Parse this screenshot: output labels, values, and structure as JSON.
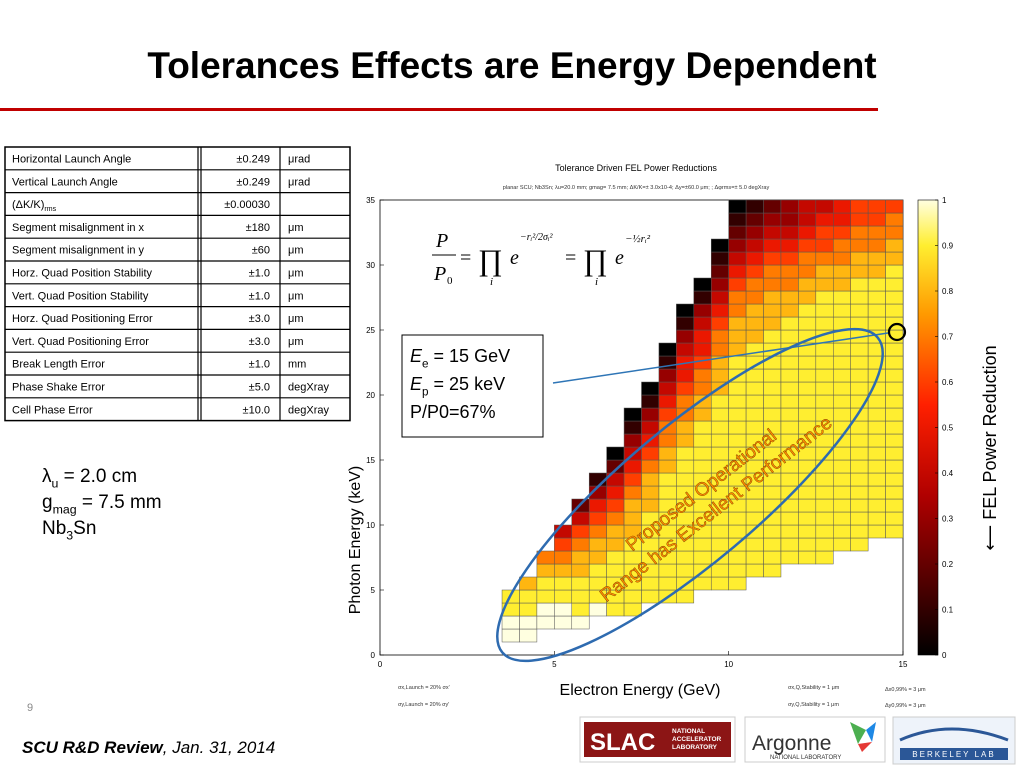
{
  "title": "Tolerances Effects are Energy Dependent",
  "table": {
    "rows": [
      [
        "Horizontal Launch Angle",
        "±0.249",
        "μrad"
      ],
      [
        "Vertical Launch Angle",
        "±0.249",
        "μrad"
      ],
      [
        {
          "text": "(ΔK/K)",
          "sub": "rms"
        },
        "±0.00030",
        ""
      ],
      [
        "Segment misalignment in x",
        "±180",
        "μm"
      ],
      [
        "Segment misalignment in y",
        "±60",
        "μm"
      ],
      [
        "Horz. Quad Position Stability",
        "±1.0",
        "μm"
      ],
      [
        "Vert. Quad Position Stability",
        "±1.0",
        "μm"
      ],
      [
        "Horz. Quad Positioning Error",
        "±3.0",
        "μm"
      ],
      [
        "Vert. Quad Positioning Error",
        "±3.0",
        "μm"
      ],
      [
        "Break Length Error",
        "±1.0",
        "mm"
      ],
      [
        "Phase Shake Error",
        "±5.0",
        "degXray"
      ],
      [
        "Cell Phase Error",
        "±10.0",
        "degXray"
      ]
    ]
  },
  "params": [
    {
      "main": "λ",
      "sub": "u",
      "rest": "   = 2.0 cm"
    },
    {
      "main": "g",
      "sub": "mag",
      "rest": " = 7.5 mm"
    },
    {
      "main": "Nb",
      "sub": "3",
      "rest": "Sn"
    }
  ],
  "chart_data": {
    "type": "heatmap",
    "title": "Tolerance Driven FEL Power Reductions",
    "subtitle": "planar SCU; Nb3Sn; λu=20.0 mm; gmag= 7.5 mm; ΔK/K=± 3.0x10-4; Δy=±60.0 μm; ; Δφrms=± 5.0 degXray",
    "xlabel": "Electron Energy (GeV)",
    "ylabel": "Photon Energy (keV)",
    "xlim": [
      0,
      15
    ],
    "ylim": [
      0,
      35
    ],
    "xticks": [
      0,
      5,
      10,
      15
    ],
    "yticks": [
      0,
      5,
      10,
      15,
      20,
      25,
      30,
      35
    ],
    "x_step": 0.5,
    "y_step": 1,
    "clim": [
      0,
      1
    ],
    "cticks": [
      0,
      0.1,
      0.2,
      0.3,
      0.4,
      0.5,
      0.6,
      0.7,
      0.8,
      0.9,
      1
    ],
    "colorscale": {
      "stops": [
        0,
        0.35,
        0.55,
        0.75,
        0.9,
        1
      ],
      "colors": [
        "#000000",
        "#b00000",
        "#ff2000",
        "#ff9a00",
        "#ffee30",
        "#ffffe0"
      ]
    },
    "columns": [
      {
        "x": 3.5,
        "y0": 1,
        "values": [
          1,
          1,
          0.9,
          0.9
        ]
      },
      {
        "x": 4,
        "y0": 1,
        "values": [
          1,
          1,
          0.9,
          0.9,
          0.8
        ]
      },
      {
        "x": 4.5,
        "y0": 2,
        "values": [
          1,
          1,
          0.9,
          0.9,
          0.8,
          0.7
        ]
      },
      {
        "x": 5,
        "y0": 2,
        "values": [
          1,
          1,
          0.9,
          0.9,
          0.8,
          0.7,
          0.6,
          0.4
        ]
      },
      {
        "x": 5.5,
        "y0": 2,
        "values": [
          1,
          0.9,
          0.9,
          0.9,
          0.8,
          0.8,
          0.7,
          0.6,
          0.4,
          0.2
        ]
      },
      {
        "x": 6,
        "y0": 3,
        "values": [
          1,
          0.9,
          0.9,
          0.9,
          0.8,
          0.8,
          0.7,
          0.6,
          0.5,
          0.3,
          0.1
        ]
      },
      {
        "x": 6.5,
        "y0": 3,
        "values": [
          0.9,
          0.9,
          0.9,
          0.9,
          0.9,
          0.8,
          0.8,
          0.7,
          0.6,
          0.5,
          0.4,
          0.2,
          0
        ]
      },
      {
        "x": 7,
        "y0": 3,
        "values": [
          0.9,
          0.9,
          0.9,
          0.9,
          0.9,
          0.9,
          0.8,
          0.8,
          0.8,
          0.7,
          0.6,
          0.5,
          0.4,
          0.3,
          0.1,
          0
        ]
      },
      {
        "x": 7.5,
        "y0": 4,
        "values": [
          0.9,
          0.9,
          0.9,
          0.9,
          0.9,
          0.9,
          0.9,
          0.8,
          0.8,
          0.8,
          0.7,
          0.6,
          0.5,
          0.4,
          0.3,
          0.1,
          0
        ]
      },
      {
        "x": 8,
        "y0": 4,
        "values": [
          0.9,
          0.9,
          0.9,
          0.9,
          0.9,
          0.9,
          0.9,
          0.9,
          0.9,
          0.9,
          0.8,
          0.8,
          0.7,
          0.7,
          0.6,
          0.5,
          0.4,
          0.3,
          0.1,
          0
        ]
      },
      {
        "x": 8.5,
        "y0": 4,
        "values": [
          0.9,
          0.9,
          0.9,
          0.9,
          0.9,
          0.9,
          0.9,
          0.9,
          0.9,
          0.9,
          0.9,
          0.9,
          0.8,
          0.8,
          0.7,
          0.7,
          0.6,
          0.5,
          0.5,
          0.4,
          0.3,
          0.1,
          0
        ]
      },
      {
        "x": 9,
        "y0": 5,
        "values": [
          0.9,
          0.9,
          0.9,
          0.9,
          0.9,
          0.9,
          0.9,
          0.9,
          0.9,
          0.9,
          0.9,
          0.9,
          0.9,
          0.8,
          0.8,
          0.7,
          0.7,
          0.6,
          0.5,
          0.5,
          0.4,
          0.3,
          0.1,
          0
        ]
      },
      {
        "x": 9.5,
        "y0": 5,
        "values": [
          0.9,
          0.9,
          0.9,
          0.9,
          0.9,
          0.9,
          0.9,
          0.9,
          0.9,
          0.9,
          0.9,
          0.9,
          0.9,
          0.9,
          0.9,
          0.8,
          0.8,
          0.8,
          0.7,
          0.7,
          0.6,
          0.5,
          0.4,
          0.3,
          0.2,
          0.1,
          0
        ]
      },
      {
        "x": 10,
        "y0": 5,
        "values": [
          0.9,
          0.9,
          0.9,
          0.9,
          0.9,
          0.9,
          0.9,
          0.9,
          0.9,
          0.9,
          0.9,
          0.9,
          0.9,
          0.9,
          0.9,
          0.9,
          0.9,
          0.9,
          0.8,
          0.8,
          0.8,
          0.7,
          0.7,
          0.6,
          0.5,
          0.4,
          0.3,
          0.2,
          0.1,
          0
        ]
      },
      {
        "x": 10.5,
        "y0": 6,
        "values": [
          0.9,
          0.9,
          0.9,
          0.9,
          0.9,
          0.9,
          0.9,
          0.9,
          0.9,
          0.9,
          0.9,
          0.9,
          0.9,
          0.9,
          0.9,
          0.9,
          0.9,
          0.9,
          0.8,
          0.8,
          0.8,
          0.7,
          0.7,
          0.6,
          0.5,
          0.4,
          0.3,
          0.2,
          0.1
        ]
      },
      {
        "x": 11,
        "y0": 6,
        "values": [
          0.9,
          0.9,
          0.9,
          0.9,
          0.9,
          0.9,
          0.9,
          0.9,
          0.9,
          0.9,
          0.9,
          0.9,
          0.9,
          0.9,
          0.9,
          0.9,
          0.9,
          0.9,
          0.9,
          0.8,
          0.8,
          0.8,
          0.7,
          0.7,
          0.6,
          0.5,
          0.4,
          0.3,
          0.2
        ]
      },
      {
        "x": 11.5,
        "y0": 7,
        "values": [
          0.9,
          0.9,
          0.9,
          0.9,
          0.9,
          0.9,
          0.9,
          0.9,
          0.9,
          0.9,
          0.9,
          0.9,
          0.9,
          0.9,
          0.9,
          0.9,
          0.9,
          0.9,
          0.9,
          0.8,
          0.8,
          0.7,
          0.7,
          0.6,
          0.5,
          0.4,
          0.3,
          0.3
        ]
      },
      {
        "x": 12,
        "y0": 7,
        "values": [
          0.9,
          0.9,
          0.9,
          0.9,
          0.9,
          0.9,
          0.9,
          0.9,
          0.9,
          0.9,
          0.9,
          0.9,
          0.9,
          0.9,
          0.9,
          0.9,
          0.9,
          0.9,
          0.9,
          0.9,
          0.8,
          0.8,
          0.7,
          0.7,
          0.6,
          0.5,
          0.4,
          0.4
        ]
      },
      {
        "x": 12.5,
        "y0": 7,
        "values": [
          0.9,
          0.9,
          0.9,
          0.9,
          0.9,
          0.9,
          0.9,
          0.9,
          0.9,
          0.9,
          0.9,
          0.9,
          0.9,
          0.9,
          0.9,
          0.9,
          0.9,
          0.9,
          0.9,
          0.9,
          0.9,
          0.8,
          0.8,
          0.7,
          0.6,
          0.6,
          0.5,
          0.4
        ]
      },
      {
        "x": 13,
        "y0": 8,
        "values": [
          0.9,
          0.9,
          0.9,
          0.9,
          0.9,
          0.9,
          0.9,
          0.9,
          0.9,
          0.9,
          0.9,
          0.9,
          0.9,
          0.9,
          0.9,
          0.9,
          0.9,
          0.9,
          0.9,
          0.9,
          0.8,
          0.8,
          0.7,
          0.7,
          0.6,
          0.5,
          0.5
        ]
      },
      {
        "x": 13.5,
        "y0": 8,
        "values": [
          0.9,
          0.9,
          0.9,
          0.9,
          0.9,
          0.9,
          0.9,
          0.9,
          0.9,
          0.9,
          0.9,
          0.9,
          0.9,
          0.9,
          0.9,
          0.9,
          0.9,
          0.9,
          0.9,
          0.9,
          0.9,
          0.8,
          0.8,
          0.7,
          0.7,
          0.6,
          0.6
        ]
      },
      {
        "x": 14,
        "y0": 9,
        "values": [
          0.9,
          0.9,
          0.9,
          0.9,
          0.9,
          0.9,
          0.9,
          0.9,
          0.9,
          0.9,
          0.9,
          0.9,
          0.9,
          0.9,
          0.9,
          0.9,
          0.9,
          0.9,
          0.9,
          0.9,
          0.8,
          0.8,
          0.7,
          0.7,
          0.6,
          0.6
        ]
      },
      {
        "x": 14.5,
        "y0": 9,
        "values": [
          0.9,
          0.9,
          0.9,
          0.9,
          0.9,
          0.9,
          0.9,
          0.9,
          0.9,
          0.9,
          0.9,
          0.9,
          0.9,
          0.9,
          0.9,
          0.9,
          0.9,
          0.9,
          0.9,
          0.9,
          0.9,
          0.8,
          0.8,
          0.7,
          0.7,
          0.6
        ]
      }
    ],
    "notes": [
      "σx,Launch = 20% σx'",
      "σy,Launch = 20% σy'",
      "σx,Q,Stability = 1 μm",
      "σy,Q,Stability = 1 μm",
      "Δx0,99% = 3 μm",
      "Δy0,99% = 3 μm"
    ]
  },
  "formula": {
    "num": "P",
    "den": "P",
    "den_sub": "0",
    "eq": "=",
    "prod": "∏",
    "idx": "i",
    "base": "e",
    "exp1": "−rᵢ²/2σᵢ²",
    "exp2": "−½rᵢ²"
  },
  "box": [
    {
      "main": "E",
      "sub": "e",
      "rest": " = 15 GeV"
    },
    {
      "main": "E",
      "sub": "p",
      "rest": " = 25 keV"
    },
    {
      "main": "P/P0=67%"
    }
  ],
  "annotation": [
    "Proposed Operational",
    "Range has Excellent Performance"
  ],
  "side_label": "⟵ FEL Power Reduction",
  "footer": {
    "page": "9",
    "bold": "SCU R&D Review",
    "rest": ",  Jan. 31, 2014"
  },
  "logos": {
    "slac": "SLAC",
    "slac_sub": [
      "NATIONAL",
      "ACCELERATOR",
      "LABORATORY"
    ],
    "argonne": "Argonne",
    "argonne_sub": "NATIONAL LABORATORY",
    "berkeley": "BERKELEY LAB"
  }
}
